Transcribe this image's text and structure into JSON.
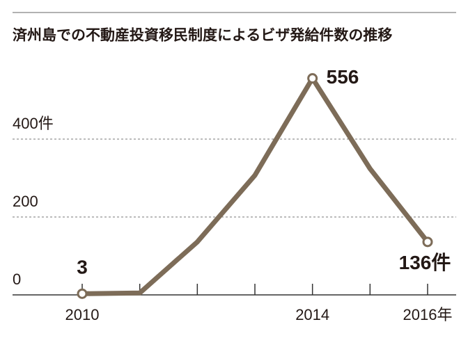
{
  "chart_data": {
    "type": "line",
    "title": "済州島での不動産投資移民制度によるビザ発給件数の推移",
    "categories": [
      "2010",
      null,
      null,
      null,
      "2014",
      null,
      "2016年"
    ],
    "values": [
      3,
      5,
      136,
      307,
      556,
      324,
      136
    ],
    "value_labels": [
      "3",
      null,
      null,
      null,
      "556",
      null,
      "136件"
    ],
    "color": "#7d6c58",
    "ylim": [
      0,
      600
    ],
    "yticks": [
      0,
      200,
      {
        "value": 400,
        "label": "400件"
      }
    ],
    "grid": true
  }
}
